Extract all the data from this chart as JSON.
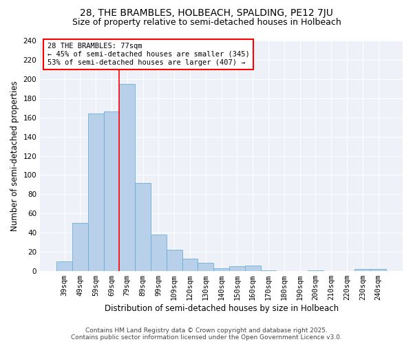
{
  "title1": "28, THE BRAMBLES, HOLBEACH, SPALDING, PE12 7JU",
  "title2": "Size of property relative to semi-detached houses in Holbeach",
  "xlabel": "Distribution of semi-detached houses by size in Holbeach",
  "ylabel": "Number of semi-detached properties",
  "categories": [
    "39sqm",
    "49sqm",
    "59sqm",
    "69sqm",
    "79sqm",
    "89sqm",
    "99sqm",
    "109sqm",
    "120sqm",
    "130sqm",
    "140sqm",
    "150sqm",
    "160sqm",
    "170sqm",
    "180sqm",
    "190sqm",
    "200sqm",
    "210sqm",
    "220sqm",
    "230sqm",
    "240sqm"
  ],
  "values": [
    10,
    50,
    164,
    166,
    195,
    92,
    38,
    22,
    13,
    9,
    3,
    5,
    6,
    1,
    0,
    0,
    1,
    0,
    0,
    2,
    2
  ],
  "bar_color": "#b8d0ea",
  "bar_edge_color": "#6baed6",
  "vline_color": "red",
  "vline_x_index": 4,
  "annotation_line1": "28 THE BRAMBLES: 77sqm",
  "annotation_line2": "← 45% of semi-detached houses are smaller (345)",
  "annotation_line3": "53% of semi-detached houses are larger (407) →",
  "annotation_box_color": "white",
  "annotation_box_edge_color": "red",
  "ylim": [
    0,
    240
  ],
  "yticks": [
    0,
    20,
    40,
    60,
    80,
    100,
    120,
    140,
    160,
    180,
    200,
    220,
    240
  ],
  "background_color": "#eef2f8",
  "grid_color": "white",
  "footer1": "Contains HM Land Registry data © Crown copyright and database right 2025.",
  "footer2": "Contains public sector information licensed under the Open Government Licence v3.0.",
  "title1_fontsize": 10,
  "title2_fontsize": 9,
  "axis_label_fontsize": 8.5,
  "tick_fontsize": 7.5,
  "annotation_fontsize": 7.5,
  "footer_fontsize": 6.5
}
